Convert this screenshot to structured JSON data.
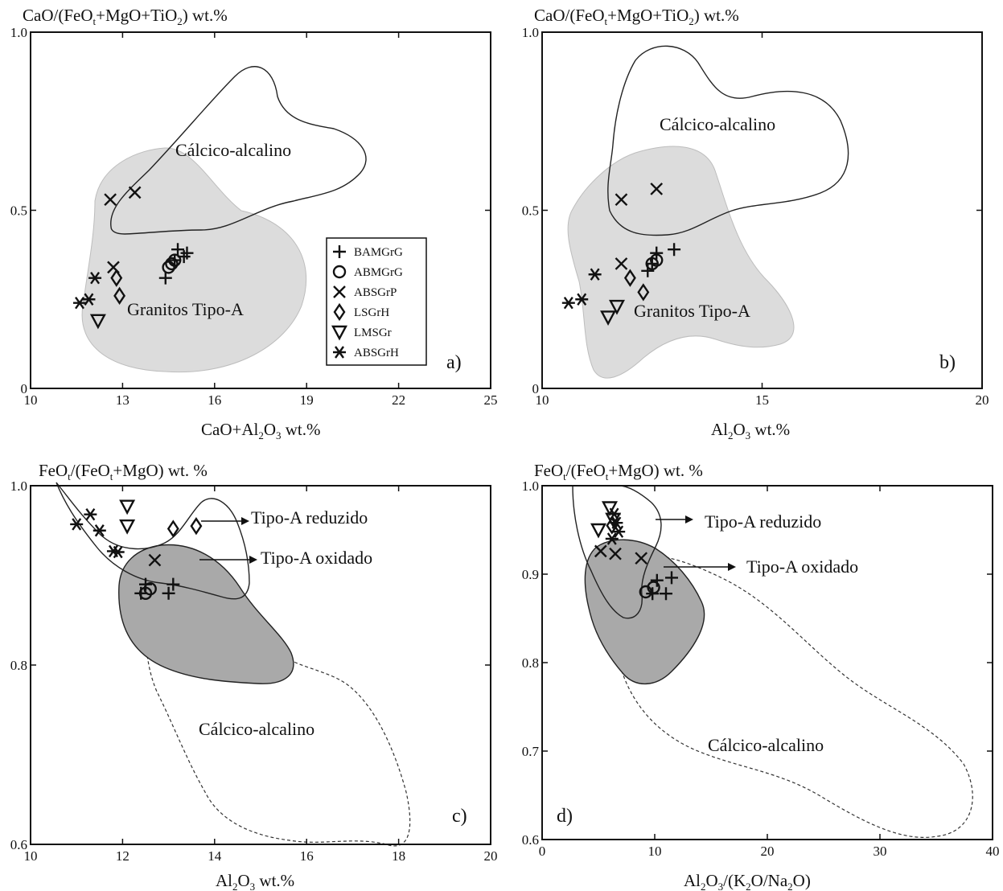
{
  "chart_data": [
    {
      "id": "a",
      "type": "scatter",
      "title": "CaO/(FeOt+MgO+TiO2) wt.%",
      "xlabel": "CaO+Al2O3 wt.%",
      "ylabel": "CaO/(FeOt+MgO+TiO2) wt.%",
      "xlim": [
        10,
        25
      ],
      "ylim": [
        0,
        1.0
      ],
      "xticks": [
        "10",
        "13",
        "16",
        "19",
        "22",
        "25"
      ],
      "yticks": [
        "0",
        "0.5",
        "1.0"
      ],
      "panel_label": "a)",
      "field_labels": [
        "Cálcico-alcalino",
        "Granitos Tipo-A"
      ],
      "legend": [
        "BAMGrG",
        "ABMGrG",
        "ABSGrP",
        "LSGrH",
        "LMSGr",
        "ABSGrH"
      ],
      "series": [
        {
          "name": "BAMGrG",
          "marker": "plus",
          "x": [
            14.4,
            14.7,
            14.8,
            15.0,
            15.1
          ],
          "y": [
            0.31,
            0.36,
            0.39,
            0.37,
            0.38
          ]
        },
        {
          "name": "ABMGrG",
          "marker": "circle",
          "x": [
            14.5,
            14.6,
            14.7
          ],
          "y": [
            0.34,
            0.35,
            0.36
          ]
        },
        {
          "name": "ABSGrP",
          "marker": "x",
          "x": [
            12.6,
            13.4,
            12.7
          ],
          "y": [
            0.53,
            0.55,
            0.34
          ]
        },
        {
          "name": "LSGrH",
          "marker": "diamond",
          "x": [
            12.8,
            12.9
          ],
          "y": [
            0.31,
            0.26
          ]
        },
        {
          "name": "LMSGr",
          "marker": "triangle-down",
          "x": [
            12.2
          ],
          "y": [
            0.19
          ]
        },
        {
          "name": "ABSGrH",
          "marker": "asterisk",
          "x": [
            11.6,
            11.9,
            12.1
          ],
          "y": [
            0.24,
            0.25,
            0.31
          ]
        }
      ]
    },
    {
      "id": "b",
      "type": "scatter",
      "title": "CaO/(FeOt+MgO+TiO2) wt.%",
      "xlabel": "Al2O3 wt.%",
      "ylabel": "CaO/(FeOt+MgO+TiO2) wt.%",
      "xlim": [
        10,
        20
      ],
      "ylim": [
        0,
        1.0
      ],
      "xticks": [
        "10",
        "15",
        "20"
      ],
      "yticks": [
        "0",
        "0.5",
        "1.0"
      ],
      "panel_label": "b)",
      "field_labels": [
        "Cálcico-alcalino",
        "Granitos Tipo-A"
      ],
      "series": [
        {
          "name": "BAMGrG",
          "marker": "plus",
          "x": [
            12.4,
            12.6,
            13.0,
            12.5
          ],
          "y": [
            0.33,
            0.38,
            0.39,
            0.35
          ]
        },
        {
          "name": "ABMGrG",
          "marker": "circle",
          "x": [
            12.5,
            12.6
          ],
          "y": [
            0.35,
            0.36
          ]
        },
        {
          "name": "ABSGrP",
          "marker": "x",
          "x": [
            11.8,
            12.6,
            11.8
          ],
          "y": [
            0.53,
            0.56,
            0.35
          ]
        },
        {
          "name": "LSGrH",
          "marker": "diamond",
          "x": [
            12.0,
            12.3
          ],
          "y": [
            0.31,
            0.27
          ]
        },
        {
          "name": "LMSGr",
          "marker": "triangle-down",
          "x": [
            11.5,
            11.7
          ],
          "y": [
            0.2,
            0.23
          ]
        },
        {
          "name": "ABSGrH",
          "marker": "asterisk",
          "x": [
            10.6,
            10.9,
            11.2
          ],
          "y": [
            0.24,
            0.25,
            0.32
          ]
        }
      ]
    },
    {
      "id": "c",
      "type": "scatter",
      "title": "FeOt/(FeOt+MgO) wt. %",
      "xlabel": "Al2O3 wt.%",
      "ylabel": "FeOt/(FeOt+MgO) wt. %",
      "xlim": [
        10,
        20
      ],
      "ylim": [
        0.6,
        1.0
      ],
      "xticks": [
        "10",
        "12",
        "14",
        "16",
        "18",
        "20"
      ],
      "yticks": [
        "0.6",
        "0.8",
        "1.0"
      ],
      "panel_label": "c)",
      "field_labels": [
        "Tipo-A reduzido",
        "Tipo-A oxidado",
        "Cálcico-alcalino"
      ],
      "series": [
        {
          "name": "BAMGrG",
          "marker": "plus",
          "x": [
            12.4,
            12.5,
            13.0,
            13.1
          ],
          "y": [
            0.88,
            0.89,
            0.88,
            0.89
          ]
        },
        {
          "name": "ABMGrG",
          "marker": "circle",
          "x": [
            12.5,
            12.6
          ],
          "y": [
            0.88,
            0.885
          ]
        },
        {
          "name": "ABSGrP",
          "marker": "x",
          "x": [
            12.7
          ],
          "y": [
            0.917
          ]
        },
        {
          "name": "LSGrH",
          "marker": "diamond",
          "x": [
            13.1,
            13.6
          ],
          "y": [
            0.952,
            0.955
          ]
        },
        {
          "name": "LMSGr",
          "marker": "triangle-down",
          "x": [
            12.1,
            12.1
          ],
          "y": [
            0.977,
            0.955
          ]
        },
        {
          "name": "ABSGrH",
          "marker": "asterisk",
          "x": [
            11.0,
            11.3,
            11.5,
            11.8,
            11.9
          ],
          "y": [
            0.957,
            0.968,
            0.95,
            0.927,
            0.926
          ]
        }
      ]
    },
    {
      "id": "d",
      "type": "scatter",
      "title": "FeOt/(FeOt+MgO) wt. %",
      "xlabel": "Al2O3/(K2O/Na2O)",
      "ylabel": "FeOt/(FeOt+MgO) wt. %",
      "xlim": [
        0,
        40
      ],
      "ylim": [
        0.6,
        1.0
      ],
      "xticks": [
        "0",
        "10",
        "20",
        "30",
        "40"
      ],
      "yticks": [
        "0.6",
        "0.7",
        "0.8",
        "0.9",
        "1.0"
      ],
      "panel_label": "d)",
      "field_labels": [
        "Tipo-A reduzido",
        "Tipo-A oxidado",
        "Cálcico-alcalino"
      ],
      "series": [
        {
          "name": "BAMGrG",
          "marker": "plus",
          "x": [
            9.8,
            10.2,
            11.0,
            11.5
          ],
          "y": [
            0.878,
            0.893,
            0.878,
            0.896
          ]
        },
        {
          "name": "ABMGrG",
          "marker": "circle",
          "x": [
            9.2,
            9.9
          ],
          "y": [
            0.88,
            0.885
          ]
        },
        {
          "name": "ABSGrP",
          "marker": "x",
          "x": [
            5.2,
            6.5,
            8.8
          ],
          "y": [
            0.926,
            0.923,
            0.918
          ]
        },
        {
          "name": "LSGrH",
          "marker": "diamond",
          "x": [
            6.2
          ],
          "y": [
            0.955
          ]
        },
        {
          "name": "LMSGr",
          "marker": "triangle-down",
          "x": [
            5.0,
            6.0,
            6.3
          ],
          "y": [
            0.95,
            0.975,
            0.962
          ]
        },
        {
          "name": "ABSGrH",
          "marker": "asterisk",
          "x": [
            6.4,
            6.6,
            6.8,
            6.2
          ],
          "y": [
            0.968,
            0.958,
            0.948,
            0.94
          ]
        }
      ]
    }
  ]
}
